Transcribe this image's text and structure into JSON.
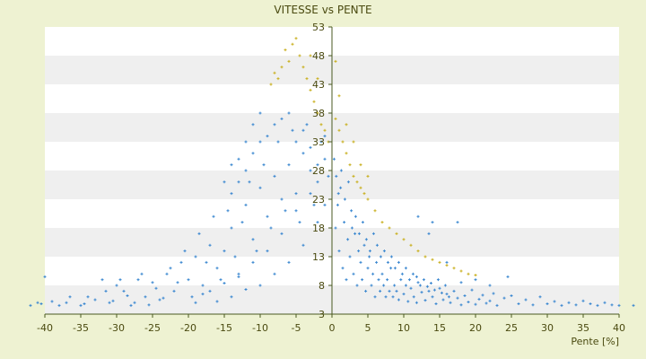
{
  "colors": {
    "background": "#EEF2D2",
    "plot_band_light": "#FFFFFF",
    "plot_band_dark": "#EFEFEF",
    "axis": "#4A5A20",
    "series_main": "#3A87D0",
    "series_secondary": "#C9B020"
  },
  "chart_data": {
    "type": "scatter",
    "title": "VITESSE vs PENTE",
    "xlabel": "Pente [%]",
    "ylabel": "",
    "xlim": [
      -40,
      40
    ],
    "ylim": [
      3,
      53
    ],
    "x_ticks": [
      -40,
      -35,
      -30,
      -25,
      -20,
      -15,
      -10,
      -5,
      0,
      5,
      10,
      15,
      20,
      25,
      30,
      35,
      40
    ],
    "y_ticks": [
      3,
      8,
      13,
      18,
      23,
      28,
      33,
      38,
      43,
      48,
      53
    ],
    "grid": "horizontal-bands",
    "legend": "none",
    "series": [
      {
        "color": "#3A87D0",
        "marker": "plus",
        "values": [
          [
            -42,
            4.5
          ],
          [
            -41,
            5
          ],
          [
            -40,
            9.5
          ],
          [
            -38,
            4.5
          ],
          [
            -36.5,
            6
          ],
          [
            -35,
            4.5
          ],
          [
            -34.5,
            4.8
          ],
          [
            -34,
            6
          ],
          [
            -32,
            9
          ],
          [
            -31,
            5
          ],
          [
            -30,
            8
          ],
          [
            -29,
            7
          ],
          [
            -28,
            4.5
          ],
          [
            -27,
            9
          ],
          [
            -26,
            6
          ],
          [
            -25,
            8.5
          ],
          [
            -24,
            5.5
          ],
          [
            -23,
            10
          ],
          [
            -22,
            7
          ],
          [
            -21,
            12
          ],
          [
            -20,
            9
          ],
          [
            -19,
            13
          ],
          [
            -18,
            8
          ],
          [
            -17,
            15
          ],
          [
            -16,
            11
          ],
          [
            -15,
            14
          ],
          [
            -14,
            18
          ],
          [
            -13,
            10
          ],
          [
            -12,
            22
          ],
          [
            -11,
            16
          ],
          [
            -10,
            25
          ],
          [
            -9,
            20
          ],
          [
            -8,
            27
          ],
          [
            -7,
            23
          ],
          [
            -6,
            29
          ],
          [
            -5,
            24
          ],
          [
            -4,
            31
          ],
          [
            -3,
            28
          ],
          [
            -2,
            26
          ],
          [
            -1,
            30
          ],
          [
            -40.5,
            4.8
          ],
          [
            -39,
            5.2
          ],
          [
            -37,
            5
          ],
          [
            -33,
            5.5
          ],
          [
            -31.5,
            7
          ],
          [
            -30.5,
            5.3
          ],
          [
            -29.5,
            9
          ],
          [
            -28.5,
            6.2
          ],
          [
            -27.5,
            5
          ],
          [
            -26.5,
            10
          ],
          [
            -25.5,
            4.6
          ],
          [
            -24.5,
            7.5
          ],
          [
            -23.5,
            5.8
          ],
          [
            -22.5,
            11
          ],
          [
            -21.5,
            8.5
          ],
          [
            -20.5,
            14
          ],
          [
            -19.5,
            6
          ],
          [
            -18.5,
            17
          ],
          [
            -17.5,
            12
          ],
          [
            -16.5,
            20
          ],
          [
            -15.5,
            9
          ],
          [
            -14.5,
            21
          ],
          [
            -13.5,
            13
          ],
          [
            -12.5,
            19
          ],
          [
            -11.5,
            26
          ],
          [
            -10.5,
            14
          ],
          [
            -9.5,
            29
          ],
          [
            -8.5,
            18
          ],
          [
            -7.5,
            33
          ],
          [
            -6.5,
            21
          ],
          [
            -5.5,
            35
          ],
          [
            -4.5,
            19
          ],
          [
            -3.5,
            36
          ],
          [
            -2.5,
            22
          ],
          [
            -1.5,
            33
          ],
          [
            -0.5,
            27
          ],
          [
            -19,
            5
          ],
          [
            -18,
            6.5
          ],
          [
            -17,
            7
          ],
          [
            -16,
            5.2
          ],
          [
            -15,
            8.4
          ],
          [
            -14,
            6
          ],
          [
            -13,
            9.5
          ],
          [
            -12,
            7.3
          ],
          [
            -11,
            12
          ],
          [
            -10,
            8
          ],
          [
            -9,
            14
          ],
          [
            -8,
            10
          ],
          [
            -7,
            17
          ],
          [
            -6,
            12
          ],
          [
            -5,
            21
          ],
          [
            -4,
            15
          ],
          [
            -3,
            24
          ],
          [
            -2,
            19
          ],
          [
            -1,
            22
          ],
          [
            -14,
            24
          ],
          [
            -13,
            26
          ],
          [
            -12,
            28
          ],
          [
            -11,
            31
          ],
          [
            -10,
            33
          ],
          [
            -9,
            34
          ],
          [
            -8,
            36
          ],
          [
            -7,
            37
          ],
          [
            -6,
            38
          ],
          [
            -5,
            33
          ],
          [
            -4,
            35
          ],
          [
            -3,
            32
          ],
          [
            -2,
            29
          ],
          [
            -1,
            34
          ],
          [
            -15,
            26
          ],
          [
            -14,
            29
          ],
          [
            -13,
            30
          ],
          [
            -12,
            33
          ],
          [
            -11,
            36
          ],
          [
            -10,
            38
          ],
          [
            0.5,
            18
          ],
          [
            0.8,
            22
          ],
          [
            1,
            14
          ],
          [
            1.2,
            25
          ],
          [
            1.5,
            11
          ],
          [
            1.7,
            19
          ],
          [
            2,
            9
          ],
          [
            2.2,
            16
          ],
          [
            2.5,
            13
          ],
          [
            2.7,
            21
          ],
          [
            3,
            10
          ],
          [
            3.2,
            17
          ],
          [
            3.5,
            8
          ],
          [
            3.7,
            14
          ],
          [
            4,
            12
          ],
          [
            4.2,
            9
          ],
          [
            4.5,
            15
          ],
          [
            4.7,
            7
          ],
          [
            5,
            11
          ],
          [
            5.2,
            13
          ],
          [
            5.5,
            8
          ],
          [
            5.7,
            10
          ],
          [
            6,
            6
          ],
          [
            6.2,
            12
          ],
          [
            6.5,
            9
          ],
          [
            6.7,
            7
          ],
          [
            7,
            10
          ],
          [
            7.2,
            8
          ],
          [
            7.5,
            6
          ],
          [
            7.7,
            9
          ],
          [
            8,
            7
          ],
          [
            8.2,
            11
          ],
          [
            8.5,
            6
          ],
          [
            8.7,
            8
          ],
          [
            9,
            7
          ],
          [
            9.3,
            5.5
          ],
          [
            9.6,
            9
          ],
          [
            10,
            6.5
          ],
          [
            10.3,
            8
          ],
          [
            10.6,
            5.2
          ],
          [
            11,
            7.5
          ],
          [
            11.4,
            6
          ],
          [
            11.8,
            5
          ],
          [
            12,
            8.5
          ],
          [
            12.5,
            6.8
          ],
          [
            13,
            5.4
          ],
          [
            13.5,
            7
          ],
          [
            14,
            6
          ],
          [
            14.5,
            4.8
          ],
          [
            15,
            7.5
          ],
          [
            15.5,
            5.5
          ],
          [
            16,
            6.5
          ],
          [
            16.5,
            5
          ],
          [
            17,
            7
          ],
          [
            17.5,
            5.8
          ],
          [
            18,
            4.6
          ],
          [
            18.5,
            6.2
          ],
          [
            19,
            5.1
          ],
          [
            19.5,
            7.2
          ],
          [
            20,
            4.7
          ],
          [
            20.5,
            5.6
          ],
          [
            21,
            6.3
          ],
          [
            21.5,
            4.9
          ],
          [
            22,
            5.3
          ],
          [
            22.5,
            6.6
          ],
          [
            23,
            4.5
          ],
          [
            24,
            5.8
          ],
          [
            24.5,
            9.5
          ],
          [
            25,
            6.2
          ],
          [
            26,
            4.8
          ],
          [
            27,
            5.5
          ],
          [
            28,
            4.6
          ],
          [
            29,
            6
          ],
          [
            30,
            4.8
          ],
          [
            31,
            5.2
          ],
          [
            32,
            4.5
          ],
          [
            33,
            5
          ],
          [
            34,
            4.6
          ],
          [
            35,
            5.3
          ],
          [
            36,
            4.8
          ],
          [
            37,
            4.5
          ],
          [
            38,
            5
          ],
          [
            39,
            4.6
          ],
          [
            40,
            4.5
          ],
          [
            42,
            4.5
          ],
          [
            0.3,
            30
          ],
          [
            0.6,
            27
          ],
          [
            0.9,
            24
          ],
          [
            1.3,
            28
          ],
          [
            1.8,
            23
          ],
          [
            2.3,
            26
          ],
          [
            2.8,
            18
          ],
          [
            3.3,
            20
          ],
          [
            3.8,
            17
          ],
          [
            4.3,
            19
          ],
          [
            4.8,
            16
          ],
          [
            5.3,
            14
          ],
          [
            5.8,
            17
          ],
          [
            6.3,
            15
          ],
          [
            6.8,
            13
          ],
          [
            7.3,
            14
          ],
          [
            7.8,
            12
          ],
          [
            8.3,
            13
          ],
          [
            8.8,
            11
          ],
          [
            9.3,
            12
          ],
          [
            9.8,
            10
          ],
          [
            10.3,
            11
          ],
          [
            10.8,
            9
          ],
          [
            11.3,
            10
          ],
          [
            11.8,
            9.5
          ],
          [
            12.3,
            8
          ],
          [
            12.8,
            9
          ],
          [
            13.3,
            7.8
          ],
          [
            13.8,
            8.4
          ],
          [
            14.3,
            7.2
          ],
          [
            14.8,
            9
          ],
          [
            15.3,
            6.7
          ],
          [
            15.8,
            8
          ],
          [
            16.3,
            6
          ],
          [
            17.5,
            19
          ],
          [
            14,
            19
          ],
          [
            13.5,
            17
          ],
          [
            12,
            20
          ],
          [
            16,
            12
          ],
          [
            20,
            9
          ],
          [
            18,
            8.5
          ],
          [
            22,
            8
          ]
        ]
      },
      {
        "color": "#C9B020",
        "marker": "plus",
        "values": [
          [
            -8,
            45
          ],
          [
            -7,
            46
          ],
          [
            -6.5,
            49
          ],
          [
            -6,
            47
          ],
          [
            -5.5,
            50
          ],
          [
            -5,
            51
          ],
          [
            -4.5,
            48
          ],
          [
            -4,
            46
          ],
          [
            -3.5,
            44
          ],
          [
            -3,
            42
          ],
          [
            -2.5,
            40
          ],
          [
            -2,
            38
          ],
          [
            -1.5,
            36
          ],
          [
            -1,
            35
          ],
          [
            -0.5,
            33
          ],
          [
            -8.5,
            43
          ],
          [
            -7.5,
            44
          ],
          [
            -3,
            48
          ],
          [
            -2,
            44
          ],
          [
            0.5,
            37
          ],
          [
            1,
            35
          ],
          [
            1.5,
            33
          ],
          [
            2,
            31
          ],
          [
            2.5,
            29
          ],
          [
            3,
            27
          ],
          [
            3.5,
            26
          ],
          [
            4,
            25
          ],
          [
            4.5,
            24
          ],
          [
            5,
            23
          ],
          [
            6,
            21
          ],
          [
            7,
            19
          ],
          [
            8,
            18
          ],
          [
            9,
            17
          ],
          [
            10,
            16
          ],
          [
            11,
            15
          ],
          [
            12,
            14
          ],
          [
            13,
            13
          ],
          [
            14,
            12.5
          ],
          [
            15,
            12
          ],
          [
            16,
            11.5
          ],
          [
            17,
            11
          ],
          [
            18,
            10.5
          ],
          [
            19,
            10
          ],
          [
            20,
            9.8
          ],
          [
            0.5,
            47
          ],
          [
            1,
            41
          ],
          [
            2,
            36
          ],
          [
            3,
            33
          ],
          [
            4,
            29
          ],
          [
            5,
            27
          ]
        ]
      }
    ]
  }
}
